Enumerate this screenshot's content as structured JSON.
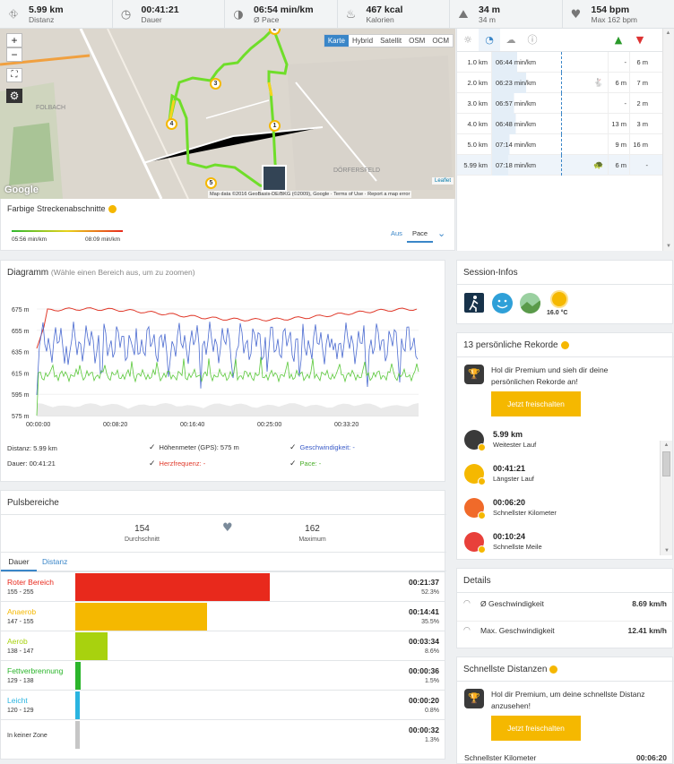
{
  "stats": [
    {
      "icon": "road-icon",
      "value": "5.99 km",
      "label": "Distanz"
    },
    {
      "icon": "clock-icon",
      "value": "00:41:21",
      "label": "Dauer"
    },
    {
      "icon": "pace-icon",
      "value": "06:54 min/km",
      "label": "Ø Pace"
    },
    {
      "icon": "flame-icon",
      "value": "467 kcal",
      "label": "Kalorien"
    },
    {
      "icon": "elevation-icon",
      "value": "34 m",
      "label": "34 m"
    },
    {
      "icon": "heart-icon",
      "value": "154 bpm",
      "label": "Max 162 bpm"
    }
  ],
  "map": {
    "types": [
      "Karte",
      "Hybrid",
      "Satellit",
      "OSM",
      "OCM"
    ],
    "active_type": "Karte",
    "zoom_in": "+",
    "zoom_out": "−",
    "markers": [
      "1",
      "2",
      "3",
      "4",
      "5"
    ],
    "attribution": "Map data ©2016 GeoBasis-DE/BKG (©2009), Google",
    "terms": "Terms of Use",
    "report": "Report a map error",
    "leaflet": "Leaflet",
    "google": "Google",
    "labels": [
      "FOLBACH",
      "DÖRFERSFELD"
    ]
  },
  "segments": {
    "title": "Farbige Streckenabschnitte",
    "min_label": "05:56 min/km",
    "max_label": "08:09 min/km",
    "options": [
      "Aus",
      "Pace"
    ],
    "active": "Pace"
  },
  "splits": {
    "rows": [
      {
        "km": "1.0 km",
        "pace": "06:44 min/km",
        "up": "-",
        "down": "6 m",
        "ratio": 0.55
      },
      {
        "km": "2.0 km",
        "pace": "06:23 min/km",
        "up": "6 m",
        "down": "7 m",
        "ratio": 0.75,
        "icon": "fast"
      },
      {
        "km": "3.0 km",
        "pace": "06:57 min/km",
        "up": "-",
        "down": "2 m",
        "ratio": 0.48
      },
      {
        "km": "4.0 km",
        "pace": "06:48 min/km",
        "up": "13 m",
        "down": "3 m",
        "ratio": 0.52
      },
      {
        "km": "5.0 km",
        "pace": "07:14 min/km",
        "up": "9 m",
        "down": "16 m",
        "ratio": 0.38
      },
      {
        "km": "5.99 km",
        "pace": "07:18 min/km",
        "up": "6 m",
        "down": "-",
        "ratio": 0.35,
        "icon": "slow"
      }
    ]
  },
  "diagram": {
    "title": "Diagramm",
    "hint": "(Wähle einen Bereich aus, um zu zoomen)",
    "legend": {
      "distance": "Distanz: 5.99 km",
      "duration": "Dauer: 00:41:21",
      "elev": "Höhenmeter (GPS): 575 m",
      "hr": "Herzfrequenz: -",
      "speed": "Geschwindigkeit: -",
      "pace": "Pace: -"
    }
  },
  "chart_data": {
    "type": "line",
    "y_ticks": [
      "675 m",
      "655 m",
      "635 m",
      "615 m",
      "595 m",
      "575 m"
    ],
    "x_ticks": [
      "00:00:00",
      "00:08:20",
      "00:16:40",
      "00:25:00",
      "00:33:20"
    ],
    "ylim": [
      575,
      675
    ],
    "series": []
  },
  "puls": {
    "title": "Pulsbereiche",
    "avg": "154",
    "avg_label": "Durchschnitt",
    "max": "162",
    "max_label": "Maximum",
    "tabs": [
      "Dauer",
      "Distanz"
    ],
    "active_tab": "Dauer",
    "zones": [
      {
        "name": "Roter Bereich",
        "range": "155 - 255",
        "time": "00:21:37",
        "pct": "52.3%",
        "fraction": 0.523,
        "color": "#e8291c"
      },
      {
        "name": "Anaerob",
        "range": "147 - 155",
        "time": "00:14:41",
        "pct": "35.5%",
        "fraction": 0.355,
        "color": "#f5b800"
      },
      {
        "name": "Aerob",
        "range": "138 - 147",
        "time": "00:03:34",
        "pct": "8.6%",
        "fraction": 0.086,
        "color": "#a8d20e"
      },
      {
        "name": "Fettverbrennung",
        "range": "129 - 138",
        "time": "00:00:36",
        "pct": "1.5%",
        "fraction": 0.015,
        "color": "#2bb52b"
      },
      {
        "name": "Leicht",
        "range": "120 - 129",
        "time": "00:00:20",
        "pct": "0.8%",
        "fraction": 0.008,
        "color": "#2ab4e0"
      },
      {
        "name": "In keiner Zone",
        "range": "",
        "time": "00:00:32",
        "pct": "1.3%",
        "fraction": 0.013,
        "color": "#c6c6c6"
      }
    ]
  },
  "session": {
    "title": "Session-Infos",
    "temp": "16.0 °C"
  },
  "records": {
    "title": "13 persönliche Rekorde",
    "promo": "Hol dir Premium und sieh dir deine persönlichen Rekorde an!",
    "button": "Jetzt freischalten",
    "items": [
      {
        "value": "5.99 km",
        "label": "Weitester Lauf",
        "color": "#3a3a3a"
      },
      {
        "value": "00:41:21",
        "label": "Längster Lauf",
        "color": "#f5b800"
      },
      {
        "value": "00:06:20",
        "label": "Schnellster Kilometer",
        "color": "#f06a2a"
      },
      {
        "value": "00:10:24",
        "label": "Schnellste Meile",
        "color": "#e8403a"
      }
    ]
  },
  "details": {
    "title": "Details",
    "rows": [
      {
        "label": "Ø Geschwindigkeit",
        "value": "8.69 km/h"
      },
      {
        "label": "Max. Geschwindigkeit",
        "value": "12.41 km/h"
      }
    ]
  },
  "fastest": {
    "title": "Schnellste Distanzen",
    "promo": "Hol dir Premium, um deine schnellste Distanz anzusehen!",
    "button": "Jetzt freischalten",
    "row_label": "Schnellster Kilometer",
    "row_value": "00:06:20"
  }
}
